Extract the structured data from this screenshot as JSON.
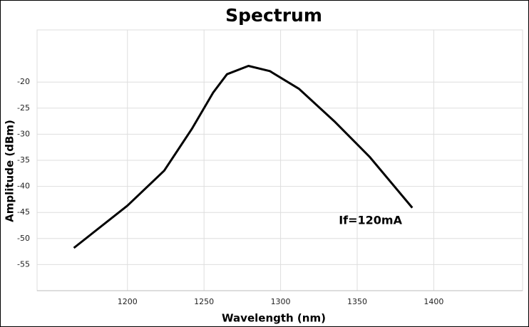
{
  "chart_data": {
    "type": "line",
    "title": "Spectrum",
    "x_label": "Wavelength  (nm)",
    "y_label": "Amplitude  (dBm)",
    "x": [
      1165,
      1200,
      1224,
      1242,
      1256,
      1265,
      1279,
      1293,
      1312,
      1335,
      1358,
      1386
    ],
    "series": [
      {
        "name": "If=120mA",
        "color": "#000000",
        "values": [
          -51.8,
          -43.7,
          -37.0,
          -29.0,
          -22.0,
          -18.5,
          -16.9,
          -17.9,
          -21.3,
          -27.5,
          -34.3,
          -44.1
        ]
      }
    ],
    "annotation": {
      "text": "If=120mA",
      "x": 1338,
      "y": -46.6
    },
    "xlim": [
      1141,
      1458
    ],
    "xticks": [
      1200,
      1250,
      1300,
      1350,
      1400
    ],
    "ylim": [
      -60,
      -10
    ],
    "yticks": [
      -55,
      -50,
      -45,
      -40,
      -35,
      -30,
      -25,
      -20
    ],
    "grid": true
  }
}
